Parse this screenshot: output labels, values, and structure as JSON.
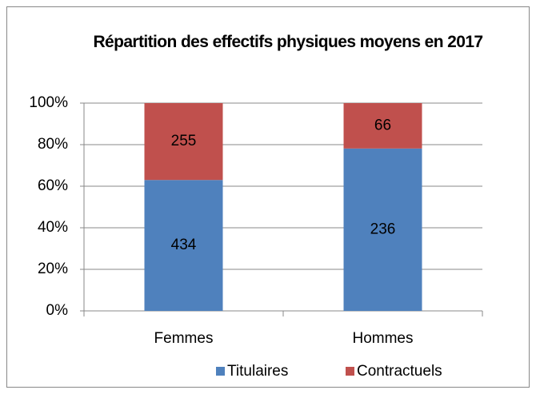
{
  "chart_data": {
    "type": "bar",
    "stacked": "percent",
    "title": "Répartition des effectifs physiques moyens en 2017",
    "categories": [
      "Femmes",
      "Hommes"
    ],
    "series": [
      {
        "name": "Titulaires",
        "color": "#4f81bd",
        "values": [
          434,
          236
        ]
      },
      {
        "name": "Contractuels",
        "color": "#c0504d",
        "values": [
          255,
          66
        ]
      }
    ],
    "ylim": [
      0,
      100
    ],
    "yticks": [
      {
        "value": 0,
        "label": "0%"
      },
      {
        "value": 20,
        "label": "20%"
      },
      {
        "value": 40,
        "label": "40%"
      },
      {
        "value": 60,
        "label": "60%"
      },
      {
        "value": 80,
        "label": "80%"
      },
      {
        "value": 100,
        "label": "100%"
      }
    ],
    "grid": true,
    "legend": "bottom"
  }
}
